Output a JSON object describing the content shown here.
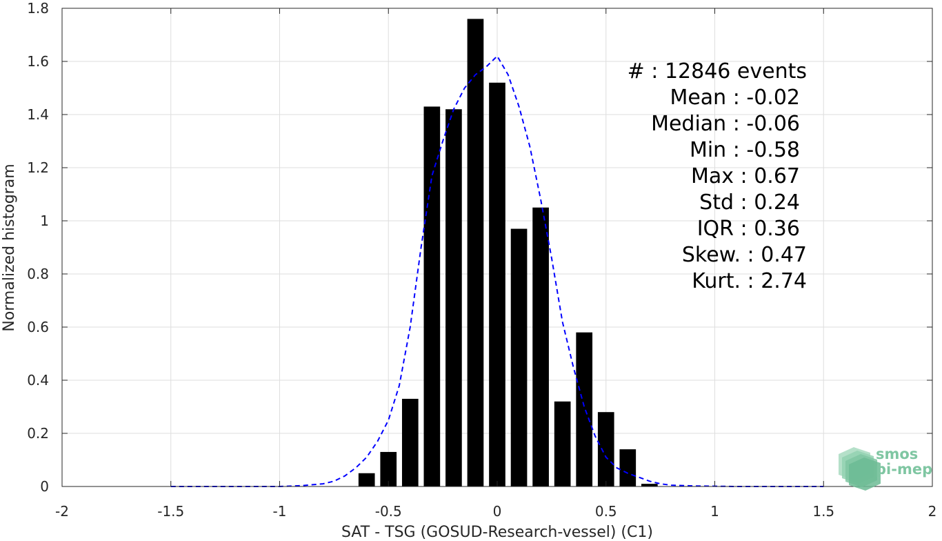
{
  "chart_data": {
    "type": "bar",
    "xlabel": "SAT - TSG (GOSUD-Research-vessel) (C1)",
    "ylabel": "Normalized histogram",
    "xlim": [
      -2,
      2
    ],
    "ylim": [
      0,
      1.8
    ],
    "xticks": [
      -2,
      -1.5,
      -1,
      -0.5,
      0,
      0.5,
      1,
      1.5,
      2
    ],
    "xtick_labels": [
      "-2",
      "-1.5",
      "-1",
      "-0.5",
      "0",
      "0.5",
      "1",
      "1.5",
      "2"
    ],
    "yticks": [
      0,
      0.2,
      0.4,
      0.6,
      0.8,
      1,
      1.2,
      1.4,
      1.6,
      1.8
    ],
    "ytick_labels": [
      "0",
      "0.2",
      "0.4",
      "0.6",
      "0.8",
      "1",
      "1.2",
      "1.4",
      "1.6",
      "1.8"
    ],
    "grid": true,
    "bar_width": 0.075,
    "bar_color": "#000000",
    "bars": {
      "x": [
        -0.6,
        -0.5,
        -0.4,
        -0.3,
        -0.2,
        -0.1,
        0.0,
        0.1,
        0.2,
        0.3,
        0.4,
        0.5,
        0.6,
        0.7
      ],
      "values": [
        0.05,
        0.13,
        0.33,
        1.43,
        1.42,
        1.76,
        1.52,
        0.97,
        1.05,
        0.32,
        0.58,
        0.28,
        0.14,
        0.01
      ]
    },
    "fit_curve": {
      "style": "dashed",
      "color": "#0000ff",
      "x": [
        -1.5,
        -1.4,
        -1.3,
        -1.2,
        -1.1,
        -1.0,
        -0.9,
        -0.8,
        -0.75,
        -0.7,
        -0.65,
        -0.6,
        -0.55,
        -0.5,
        -0.45,
        -0.4,
        -0.35,
        -0.3,
        -0.25,
        -0.2,
        -0.15,
        -0.1,
        -0.05,
        0.0,
        0.05,
        0.1,
        0.15,
        0.2,
        0.25,
        0.3,
        0.35,
        0.4,
        0.45,
        0.5,
        0.55,
        0.6,
        0.65,
        0.7,
        0.75,
        0.8,
        0.9,
        1.0,
        1.1,
        1.2,
        1.3,
        1.4,
        1.5
      ],
      "y": [
        0.0,
        0.0,
        0.0,
        0.0,
        0.0,
        0.0,
        0.003,
        0.01,
        0.02,
        0.04,
        0.07,
        0.11,
        0.17,
        0.25,
        0.38,
        0.6,
        0.9,
        1.17,
        1.3,
        1.42,
        1.5,
        1.55,
        1.58,
        1.62,
        1.55,
        1.43,
        1.28,
        1.08,
        0.86,
        0.62,
        0.45,
        0.3,
        0.19,
        0.11,
        0.07,
        0.05,
        0.035,
        0.02,
        0.01,
        0.005,
        0.002,
        0.001,
        0.0,
        0.0,
        0.0,
        0.0,
        0.0
      ]
    },
    "stats": [
      "#  : 12846 events",
      "Mean : -0.02",
      "Median : -0.06",
      "Min : -0.58",
      "Max : 0.67",
      "Std : 0.24",
      "IQR : 0.36",
      "Skew. : 0.47",
      "Kurt. : 2.74"
    ]
  },
  "logo": {
    "line1": "smos",
    "line2": "pi-mep",
    "color": "#7fc6a2"
  }
}
